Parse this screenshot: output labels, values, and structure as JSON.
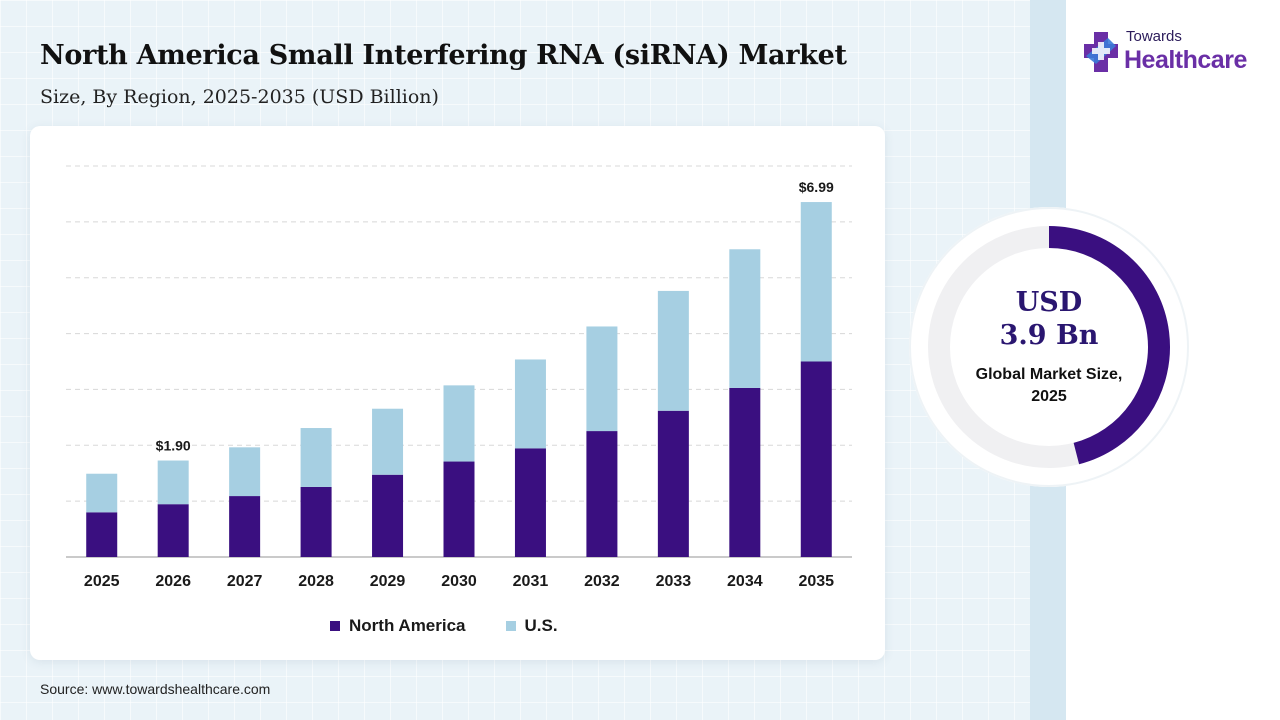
{
  "header": {
    "title": "North America Small Interfering RNA (siRNA) Market",
    "subtitle": "Size, By Region, 2025-2035 (USD Billion)"
  },
  "logo": {
    "top_text": "Towards",
    "bottom_text": "Healthcare",
    "colors": [
      "#6a2fa6",
      "#3b7bd8"
    ]
  },
  "colors": {
    "north_america": "#3a0f80",
    "us": "#a6cfe2",
    "donut_accent": "#3a0f80",
    "donut_track": "#f0f0f2",
    "gridline": "#d8d8d8"
  },
  "chart_data": {
    "type": "bar",
    "stacked": true,
    "categories": [
      "2025",
      "2026",
      "2027",
      "2028",
      "2029",
      "2030",
      "2031",
      "2032",
      "2033",
      "2034",
      "2035"
    ],
    "series": [
      {
        "name": "North America",
        "values": [
          0.88,
          1.04,
          1.2,
          1.38,
          1.62,
          1.88,
          2.14,
          2.48,
          2.88,
          3.33,
          3.85
        ]
      },
      {
        "name": "U.S.",
        "values": [
          0.76,
          0.86,
          0.96,
          1.16,
          1.3,
          1.5,
          1.75,
          2.06,
          2.36,
          2.73,
          3.14
        ]
      }
    ],
    "totals": [
      1.64,
      1.9,
      2.16,
      2.54,
      2.92,
      3.38,
      3.89,
      4.54,
      5.24,
      6.06,
      6.99
    ],
    "data_labels": [
      {
        "category": "2026",
        "text": "$1.90"
      },
      {
        "category": "2035",
        "text": "$6.99"
      }
    ],
    "title": "North America Small Interfering RNA (siRNA) Market",
    "subtitle": "Size, By Region, 2025-2035 (USD Billion)",
    "xlabel": "",
    "ylabel": "",
    "ylim": [
      0,
      7.7
    ],
    "grid": true,
    "legend_position": "bottom-center"
  },
  "legend": [
    {
      "label": "North America",
      "color": "#3a0f80"
    },
    {
      "label": "U.S.",
      "color": "#a6cfe2"
    }
  ],
  "donut": {
    "value_line1": "USD",
    "value_line2": "3.9 Bn",
    "caption": "Global Market Size, 2025",
    "fraction": 0.46
  },
  "source": "Source: www.towardshealthcare.com"
}
